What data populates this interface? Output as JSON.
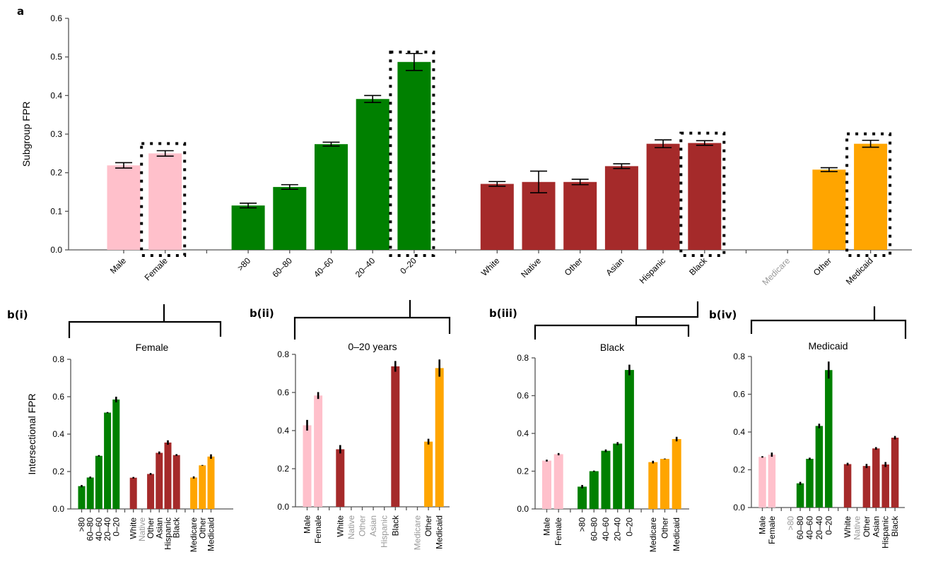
{
  "colors": {
    "sex": "#FFC0CB",
    "age": "#008000",
    "race": "#A52A2A",
    "insurance": "#FFA500",
    "muted_label": "#999999"
  },
  "panel_labels": {
    "a": "a",
    "b1": "b(i)",
    "b2": "b(ii)",
    "b3": "b(iii)",
    "b4": "b(iv)"
  },
  "chart_data": [
    {
      "id": "a",
      "type": "bar",
      "title": "",
      "xlabel": "",
      "ylabel": "Subgroup FPR",
      "ylim": [
        0,
        0.6
      ],
      "yticks": [
        "0.0",
        "0.1",
        "0.2",
        "0.3",
        "0.4",
        "0.5",
        "0.6"
      ],
      "grid": false,
      "categories": [
        "Male",
        "Female",
        "",
        ">80",
        "60–80",
        "40–60",
        "20–40",
        "0–20",
        "",
        "White",
        "Native",
        "Other",
        "Asian",
        "Hispanic",
        "Black",
        "",
        "Medicare",
        "Other",
        "Medicaid"
      ],
      "groups": [
        "sex",
        "sex",
        "gap",
        "age",
        "age",
        "age",
        "age",
        "age",
        "gap",
        "race",
        "race",
        "race",
        "race",
        "race",
        "race",
        "gap",
        "insurance",
        "insurance",
        "insurance"
      ],
      "values": [
        0.219,
        0.25,
        null,
        0.115,
        0.163,
        0.274,
        0.391,
        0.487,
        null,
        0.171,
        0.176,
        0.176,
        0.217,
        0.275,
        0.277,
        null,
        null,
        0.208,
        0.275
      ],
      "errors": [
        0.007,
        0.007,
        null,
        0.006,
        0.006,
        0.005,
        0.009,
        0.022,
        null,
        0.006,
        0.028,
        0.007,
        0.006,
        0.01,
        0.006,
        null,
        null,
        0.005,
        0.009
      ],
      "muted": [
        false,
        false,
        false,
        false,
        false,
        false,
        false,
        false,
        false,
        false,
        false,
        false,
        false,
        false,
        false,
        false,
        true,
        false,
        false
      ],
      "highlighted": [
        "Female",
        "0–20",
        "Black",
        "Medicaid"
      ]
    },
    {
      "id": "b1",
      "type": "bar",
      "title": "Female",
      "ylabel": "Intersectional FPR",
      "ylim": [
        0,
        0.8
      ],
      "yticks": [
        "0.0",
        "0.2",
        "0.4",
        "0.6",
        "0.8"
      ],
      "grid": false,
      "categories": [
        ">80",
        "60–80",
        "40–60",
        "20–40",
        "0–20",
        "",
        "White",
        "Native",
        "Other",
        "Asian",
        "Hispanic",
        "Black",
        "",
        "Medicare",
        "Other",
        "Medicaid"
      ],
      "groups": [
        "age",
        "age",
        "age",
        "age",
        "age",
        "gap",
        "race",
        "race",
        "race",
        "race",
        "race",
        "race",
        "gap",
        "insurance",
        "insurance",
        "insurance"
      ],
      "values": [
        0.122,
        0.168,
        0.284,
        0.515,
        0.585,
        null,
        0.167,
        null,
        0.187,
        0.3,
        0.355,
        0.288,
        null,
        0.168,
        0.233,
        0.28
      ],
      "errors": [
        0.006,
        0.005,
        0.004,
        0.003,
        0.015,
        null,
        0.004,
        null,
        0.005,
        0.007,
        0.012,
        0.005,
        null,
        0.006,
        0.002,
        0.012
      ],
      "muted": [
        false,
        false,
        false,
        false,
        false,
        false,
        false,
        true,
        false,
        false,
        false,
        false,
        false,
        false,
        false,
        false
      ]
    },
    {
      "id": "b2",
      "type": "bar",
      "title": "0–20 years",
      "ylabel": "",
      "ylim": [
        0,
        0.8
      ],
      "yticks": [
        "0.0",
        "0.2",
        "0.4",
        "0.6",
        "0.8"
      ],
      "grid": false,
      "categories": [
        "Male",
        "Female",
        "",
        "White",
        "Native",
        "Other",
        "Asian",
        "Hispanic",
        "Black",
        "",
        "Medicare",
        "Other",
        "Medicaid"
      ],
      "groups": [
        "sex",
        "sex",
        "gap",
        "race",
        "race",
        "race",
        "race",
        "race",
        "race",
        "gap",
        "insurance",
        "insurance",
        "insurance"
      ],
      "values": [
        0.428,
        0.584,
        null,
        0.302,
        null,
        null,
        null,
        null,
        0.737,
        null,
        null,
        0.342,
        0.728
      ],
      "errors": [
        0.028,
        0.018,
        null,
        0.022,
        null,
        null,
        null,
        null,
        0.028,
        null,
        null,
        0.015,
        0.045
      ],
      "muted": [
        false,
        false,
        false,
        false,
        true,
        true,
        true,
        true,
        false,
        false,
        true,
        false,
        false
      ]
    },
    {
      "id": "b3",
      "type": "bar",
      "title": "Black",
      "ylabel": "",
      "ylim": [
        0,
        0.8
      ],
      "yticks": [
        "0.0",
        "0.2",
        "0.4",
        "0.6",
        "0.8"
      ],
      "grid": false,
      "categories": [
        "Male",
        "Female",
        "",
        ">80",
        "60–80",
        "40–60",
        "20–40",
        "0–20",
        "",
        "Medicare",
        "Other",
        "Medicaid"
      ],
      "groups": [
        "sex",
        "sex",
        "gap",
        "age",
        "age",
        "age",
        "age",
        "age",
        "gap",
        "insurance",
        "insurance",
        "insurance"
      ],
      "values": [
        0.256,
        0.29,
        null,
        0.118,
        0.2,
        0.308,
        0.346,
        0.736,
        null,
        0.248,
        0.265,
        0.37
      ],
      "errors": [
        0.005,
        0.006,
        null,
        0.009,
        0.003,
        0.007,
        0.008,
        0.028,
        null,
        0.007,
        0.002,
        0.012
      ],
      "muted": [
        false,
        false,
        false,
        false,
        false,
        false,
        false,
        false,
        false,
        false,
        false,
        false
      ]
    },
    {
      "id": "b4",
      "type": "bar",
      "title": "Medicaid",
      "ylabel": "",
      "ylim": [
        0,
        0.8
      ],
      "yticks": [
        "0.0",
        "0.2",
        "0.4",
        "0.6",
        "0.8"
      ],
      "grid": false,
      "categories": [
        "Male",
        "Female",
        "",
        ">80",
        "60–80",
        "40–60",
        "20–40",
        "0–20",
        "",
        "White",
        "Native",
        "Other",
        "Asian",
        "Hispanic",
        "Black"
      ],
      "groups": [
        "sex",
        "sex",
        "gap",
        "age",
        "age",
        "age",
        "age",
        "age",
        "gap",
        "race",
        "race",
        "race",
        "race",
        "race",
        "race"
      ],
      "values": [
        0.268,
        0.28,
        null,
        null,
        0.128,
        0.258,
        0.432,
        0.728,
        null,
        0.23,
        null,
        0.22,
        0.313,
        0.228,
        0.37
      ],
      "errors": [
        0.004,
        0.011,
        null,
        null,
        0.008,
        0.006,
        0.012,
        0.045,
        null,
        0.007,
        null,
        0.011,
        0.007,
        0.013,
        0.009
      ],
      "muted": [
        false,
        false,
        false,
        true,
        false,
        false,
        false,
        false,
        false,
        false,
        true,
        false,
        false,
        false,
        false
      ]
    }
  ]
}
